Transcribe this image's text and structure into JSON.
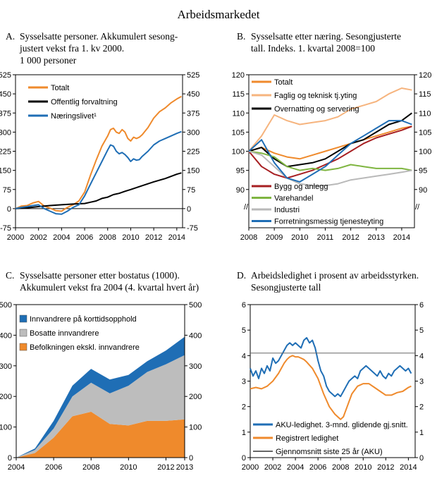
{
  "page_title": "Arbeidsmarkedet",
  "chart_data": [
    {
      "id": "A",
      "type": "line",
      "letter": "A.",
      "title_lines": [
        "Sysselsatte personer. Akkumulert sesong-",
        "justert vekst fra 1. kv 2000.",
        "1 000 personer"
      ],
      "ylim": [
        -75,
        525
      ],
      "yticks": [
        -75,
        0,
        75,
        150,
        225,
        300,
        375,
        450,
        525
      ],
      "xlim": [
        2000,
        2014.5
      ],
      "xticks": [
        2000,
        2002,
        2004,
        2006,
        2008,
        2010,
        2012,
        2014
      ],
      "zero_line": true,
      "series": [
        {
          "name": "Totalt",
          "color": "#ef8a2c",
          "width": 2,
          "x": [
            2000,
            2000.5,
            2001,
            2001.5,
            2002,
            2002.5,
            2003,
            2003.5,
            2004,
            2004.5,
            2005,
            2005.5,
            2006,
            2006.5,
            2007,
            2007.5,
            2008,
            2008.25,
            2008.5,
            2008.75,
            2009,
            2009.25,
            2009.5,
            2009.75,
            2010,
            2010.25,
            2010.5,
            2010.75,
            2011,
            2011.5,
            2012,
            2012.5,
            2013,
            2013.5,
            2014,
            2014.4
          ],
          "y": [
            0,
            10,
            12,
            22,
            28,
            10,
            2,
            -8,
            -10,
            5,
            15,
            30,
            65,
            130,
            190,
            245,
            285,
            310,
            315,
            300,
            295,
            310,
            300,
            275,
            265,
            280,
            275,
            280,
            290,
            318,
            355,
            380,
            395,
            415,
            430,
            440
          ]
        },
        {
          "name": "Offentlig forvaltning",
          "color": "#000000",
          "width": 2,
          "x": [
            2000,
            2001,
            2002,
            2003,
            2004,
            2005,
            2006,
            2006.5,
            2007,
            2007.5,
            2008,
            2008.5,
            2009,
            2009.5,
            2010,
            2011,
            2012,
            2013,
            2014,
            2014.4
          ],
          "y": [
            0,
            3,
            8,
            12,
            15,
            18,
            20,
            25,
            30,
            40,
            45,
            55,
            60,
            68,
            75,
            90,
            105,
            118,
            135,
            140
          ]
        },
        {
          "name": "Næringslivet¹",
          "color": "#1f6eb5",
          "width": 2,
          "x": [
            2000,
            2000.5,
            2001,
            2001.5,
            2002,
            2002.5,
            2003,
            2003.5,
            2004,
            2004.5,
            2005,
            2005.5,
            2006,
            2006.5,
            2007,
            2007.5,
            2008,
            2008.25,
            2008.5,
            2008.75,
            2009,
            2009.25,
            2009.5,
            2009.75,
            2010,
            2010.25,
            2010.5,
            2010.75,
            2011,
            2011.5,
            2012,
            2012.5,
            2013,
            2013.5,
            2014,
            2014.4
          ],
          "y": [
            0,
            5,
            8,
            12,
            15,
            0,
            -10,
            -20,
            -22,
            -10,
            5,
            15,
            50,
            95,
            140,
            185,
            230,
            250,
            245,
            225,
            215,
            220,
            212,
            200,
            185,
            195,
            190,
            192,
            205,
            225,
            250,
            265,
            275,
            285,
            295,
            302
          ]
        }
      ]
    },
    {
      "id": "B",
      "type": "line",
      "letter": "B.",
      "title_lines": [
        "Sysselsatte etter næring. Sesongjusterte",
        "tall. Indeks. 1. kvartal 2008=100"
      ],
      "ylim": [
        80,
        120
      ],
      "yticks": [
        90,
        95,
        100,
        105,
        110,
        115,
        120
      ],
      "xlim": [
        2008,
        2014.5
      ],
      "xticks": [
        2008,
        2009,
        2010,
        2011,
        2012,
        2013,
        2014
      ],
      "axis_break_label": "//",
      "series": [
        {
          "name": "Totalt",
          "color": "#ef8a2c",
          "width": 2,
          "x": [
            2008,
            2008.5,
            2009,
            2009.5,
            2010,
            2010.5,
            2011,
            2011.5,
            2012,
            2012.5,
            2013,
            2013.5,
            2014,
            2014.4
          ],
          "y": [
            100,
            101,
            99.5,
            98.5,
            98,
            99,
            100,
            101,
            102,
            103,
            104,
            105,
            106,
            106.5
          ]
        },
        {
          "name": "Faglig og teknisk tj.yting",
          "color": "#f6b47e",
          "width": 2,
          "x": [
            2008,
            2008.5,
            2009,
            2009.5,
            2010,
            2010.5,
            2011,
            2011.5,
            2012,
            2012.5,
            2013,
            2013.5,
            2014,
            2014.4
          ],
          "y": [
            100,
            104,
            109.5,
            108,
            107,
            107.5,
            108,
            109,
            111,
            112,
            113,
            115,
            116.5,
            116
          ]
        },
        {
          "name": "Overnatting og servering",
          "color": "#000000",
          "width": 2,
          "x": [
            2008,
            2008.5,
            2009,
            2009.5,
            2010,
            2010.5,
            2011,
            2011.5,
            2012,
            2012.5,
            2013,
            2013.5,
            2014,
            2014.4
          ],
          "y": [
            100,
            101,
            98,
            96,
            96.5,
            97,
            98,
            100,
            102,
            103,
            105,
            107,
            108,
            110
          ]
        },
        {
          "name": "Bygg og anlegg",
          "color": "#a71f22",
          "width": 2,
          "x": [
            2008,
            2008.5,
            2009,
            2009.5,
            2010,
            2010.5,
            2011,
            2011.5,
            2012,
            2012.5,
            2013,
            2013.5,
            2014,
            2014.4
          ],
          "y": [
            100,
            96,
            94,
            93,
            94,
            95,
            96.5,
            98,
            100,
            102,
            103.5,
            104.5,
            105.5,
            106.5
          ]
        },
        {
          "name": "Varehandel",
          "color": "#7fb541",
          "width": 2,
          "x": [
            2008,
            2008.5,
            2009,
            2009.5,
            2010,
            2010.5,
            2011,
            2011.5,
            2012,
            2012.5,
            2013,
            2013.5,
            2014,
            2014.4
          ],
          "y": [
            100,
            99.5,
            98.5,
            96,
            95,
            95.5,
            95,
            95.5,
            96.5,
            96,
            95.5,
            95.5,
            95.5,
            95
          ]
        },
        {
          "name": "Industri",
          "color": "#b9b9b9",
          "width": 2,
          "x": [
            2008,
            2008.5,
            2009,
            2009.5,
            2010,
            2010.5,
            2011,
            2011.5,
            2012,
            2012.5,
            2013,
            2013.5,
            2014,
            2014.4
          ],
          "y": [
            100,
            99,
            96,
            93,
            91.5,
            91,
            91,
            91.5,
            92.5,
            93,
            93.5,
            94,
            94.5,
            95
          ]
        },
        {
          "name": "Forretningsmessig tjenesteyting",
          "color": "#1f6eb5",
          "width": 2,
          "x": [
            2008,
            2008.5,
            2009,
            2009.5,
            2010,
            2010.5,
            2011,
            2011.5,
            2012,
            2012.5,
            2013,
            2013.5,
            2014,
            2014.4
          ],
          "y": [
            100,
            103,
            97,
            93,
            92,
            94,
            96,
            99,
            102,
            104,
            106,
            108,
            108,
            107
          ]
        }
      ]
    },
    {
      "id": "C",
      "type": "area",
      "letter": "C.",
      "title_lines": [
        "Sysselsatte personer etter bostatus (1000).",
        "Akkumulert vekst fra 2004 (4. kvartal hvert år)"
      ],
      "ylim": [
        0,
        500
      ],
      "yticks": [
        0,
        100,
        200,
        300,
        400,
        500
      ],
      "xlim": [
        2004,
        2013
      ],
      "xticks": [
        2004,
        2006,
        2008,
        2010,
        2012,
        2013
      ],
      "x": [
        2004,
        2005,
        2006,
        2007,
        2008,
        2009,
        2010,
        2011,
        2012,
        2013
      ],
      "series": [
        {
          "name": "Befolkningen ekskl. innvandrere",
          "color": "#ef8a2c",
          "cumulative_top": [
            0,
            15,
            65,
            135,
            150,
            110,
            105,
            120,
            120,
            125
          ]
        },
        {
          "name": "Bosatte innvandrere",
          "color": "#bdbdbd",
          "cumulative_top": [
            0,
            25,
            95,
            200,
            245,
            210,
            235,
            280,
            305,
            335
          ]
        },
        {
          "name": "Innvandrere på korttidsopphold",
          "color": "#1f6eb5",
          "cumulative_top": [
            0,
            30,
            120,
            235,
            290,
            255,
            270,
            315,
            350,
            395
          ]
        }
      ]
    },
    {
      "id": "D",
      "type": "line",
      "letter": "D.",
      "title_lines": [
        "Arbeidsledighet i prosent av arbeidsstyrken.",
        "Sesongjusterte tall"
      ],
      "ylim": [
        0,
        6
      ],
      "yticks": [
        0,
        1,
        2,
        3,
        4,
        5,
        6
      ],
      "xlim": [
        2000,
        2014.6
      ],
      "xticks": [
        2000,
        2002,
        2004,
        2006,
        2008,
        2010,
        2012,
        2014
      ],
      "series": [
        {
          "name": "AKU-ledighet. 3-mnd. glidende gj.snitt.",
          "color": "#1f6eb5",
          "width": 2,
          "x": [
            2000,
            2000.25,
            2000.5,
            2000.75,
            2001,
            2001.25,
            2001.5,
            2001.75,
            2002,
            2002.25,
            2002.5,
            2002.75,
            2003,
            2003.25,
            2003.5,
            2003.75,
            2004,
            2004.25,
            2004.5,
            2004.75,
            2005,
            2005.25,
            2005.5,
            2005.75,
            2006,
            2006.25,
            2006.5,
            2006.75,
            2007,
            2007.25,
            2007.5,
            2007.75,
            2008,
            2008.25,
            2008.5,
            2008.75,
            2009,
            2009.25,
            2009.5,
            2009.75,
            2010,
            2010.25,
            2010.5,
            2010.75,
            2011,
            2011.25,
            2011.5,
            2011.75,
            2012,
            2012.25,
            2012.5,
            2012.75,
            2013,
            2013.25,
            2013.5,
            2013.75,
            2014,
            2014.25
          ],
          "y": [
            3.5,
            3.2,
            3.4,
            3.1,
            3.5,
            3.3,
            3.6,
            3.4,
            3.9,
            3.7,
            3.8,
            4.0,
            4.2,
            4.4,
            4.5,
            4.4,
            4.5,
            4.4,
            4.3,
            4.6,
            4.7,
            4.5,
            4.6,
            4.3,
            3.8,
            3.4,
            3.2,
            2.8,
            2.6,
            2.5,
            2.4,
            2.5,
            2.4,
            2.6,
            2.8,
            3.0,
            3.1,
            3.2,
            3.1,
            3.4,
            3.5,
            3.6,
            3.5,
            3.4,
            3.3,
            3.2,
            3.4,
            3.2,
            3.1,
            3.3,
            3.2,
            3.4,
            3.5,
            3.6,
            3.5,
            3.4,
            3.5,
            3.3
          ]
        },
        {
          "name": "Registrert ledighet",
          "color": "#ef8a2c",
          "width": 2,
          "x": [
            2000,
            2000.5,
            2001,
            2001.5,
            2002,
            2002.5,
            2003,
            2003.25,
            2003.5,
            2003.75,
            2004,
            2004.25,
            2004.5,
            2004.75,
            2005,
            2005.5,
            2006,
            2006.5,
            2007,
            2007.5,
            2008,
            2008.25,
            2008.5,
            2009,
            2009.5,
            2010,
            2010.5,
            2011,
            2011.5,
            2012,
            2012.5,
            2013,
            2013.5,
            2014,
            2014.25
          ],
          "y": [
            2.7,
            2.75,
            2.7,
            2.8,
            3.0,
            3.3,
            3.7,
            3.85,
            3.95,
            4.0,
            3.95,
            3.95,
            3.9,
            3.85,
            3.75,
            3.5,
            3.1,
            2.5,
            2.0,
            1.7,
            1.5,
            1.6,
            1.9,
            2.5,
            2.8,
            2.9,
            2.9,
            2.75,
            2.6,
            2.45,
            2.45,
            2.55,
            2.6,
            2.75,
            2.8
          ]
        },
        {
          "name": "Gjennomsnitt siste 25 år (AKU)",
          "color": "#666666",
          "width": 1,
          "x": [
            2000,
            2014.6
          ],
          "y": [
            4.1,
            4.1
          ]
        }
      ]
    }
  ],
  "panels_legend_A": [
    "Totalt",
    "Offentlig forvaltning",
    "Næringslivet¹"
  ],
  "panels_legend_B": [
    "Totalt",
    "Faglig og teknisk tj.yting",
    "Overnatting og servering",
    "Bygg og anlegg",
    "Varehandel",
    "Industri",
    "Forretningsmessig tjenesteyting"
  ],
  "panels_legend_C": [
    "Innvandrere på korttidsopphold",
    "Bosatte innvandrere",
    "Befolkningen ekskl. innvandrere"
  ],
  "panels_legend_D": [
    "AKU-ledighet. 3-mnd. glidende gj.snitt.",
    "Registrert ledighet",
    "Gjennomsnitt siste 25 år (AKU)"
  ]
}
